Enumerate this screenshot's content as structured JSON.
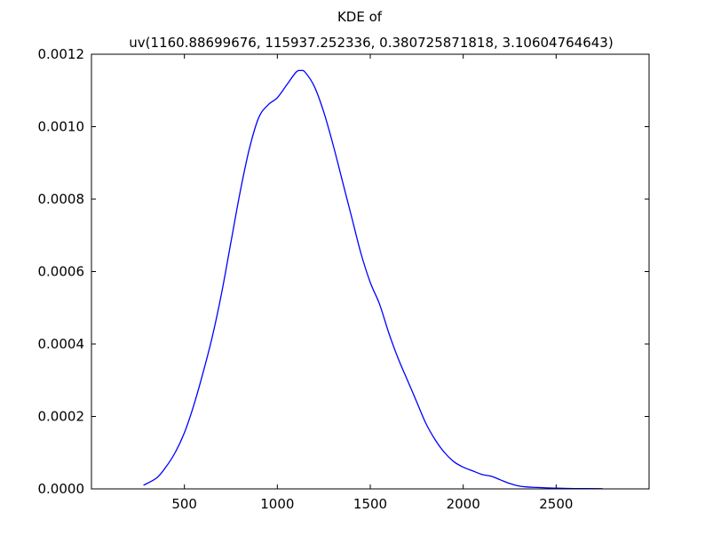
{
  "chart_data": {
    "type": "line",
    "title_line1": "KDE of",
    "title_line2": "uv(1160.88699676, 115937.252336, 0.380725871818, 3.10604764643)",
    "xlabel": "",
    "ylabel": "",
    "xlim": [
      0,
      3000
    ],
    "ylim": [
      0,
      0.0012
    ],
    "grid": false,
    "line_color": "#0000ff",
    "x_ticks": [
      {
        "value": 500,
        "label": "500"
      },
      {
        "value": 1000,
        "label": "1000"
      },
      {
        "value": 1500,
        "label": "1500"
      },
      {
        "value": 2000,
        "label": "2000"
      },
      {
        "value": 2500,
        "label": "2500"
      }
    ],
    "y_ticks": [
      {
        "value": 0,
        "label": "0.0000"
      },
      {
        "value": 0.0002,
        "label": "0.0002"
      },
      {
        "value": 0.0004,
        "label": "0.0004"
      },
      {
        "value": 0.0006,
        "label": "0.0006"
      },
      {
        "value": 0.0008,
        "label": "0.0008"
      },
      {
        "value": 0.001,
        "label": "0.0010"
      },
      {
        "value": 0.0012,
        "label": "0.0012"
      }
    ],
    "series": [
      {
        "x": [
          280,
          350,
          400,
          450,
          500,
          550,
          600,
          650,
          700,
          750,
          800,
          850,
          900,
          950,
          1000,
          1050,
          1100,
          1125,
          1150,
          1200,
          1250,
          1300,
          1350,
          1400,
          1450,
          1500,
          1550,
          1600,
          1650,
          1700,
          1750,
          1800,
          1850,
          1900,
          1950,
          2000,
          2050,
          2100,
          2150,
          2200,
          2250,
          2300,
          2350,
          2400,
          2500,
          2600,
          2750
        ],
        "y": [
          1e-05,
          3e-05,
          6e-05,
          0.0001,
          0.000155,
          0.00023,
          0.00032,
          0.00042,
          0.00054,
          0.00068,
          0.00082,
          0.00094,
          0.001025,
          0.00106,
          0.00108,
          0.001115,
          0.00115,
          0.001155,
          0.00115,
          0.00111,
          0.00104,
          0.00095,
          0.00085,
          0.00075,
          0.00065,
          0.00057,
          0.00051,
          0.00043,
          0.00036,
          0.0003,
          0.00024,
          0.00018,
          0.000135,
          0.0001,
          7.5e-05,
          6e-05,
          5e-05,
          4e-05,
          3.5e-05,
          2.5e-05,
          1.5e-05,
          8e-06,
          5e-06,
          4e-06,
          2e-06,
          1e-06,
          5e-07
        ]
      }
    ]
  }
}
